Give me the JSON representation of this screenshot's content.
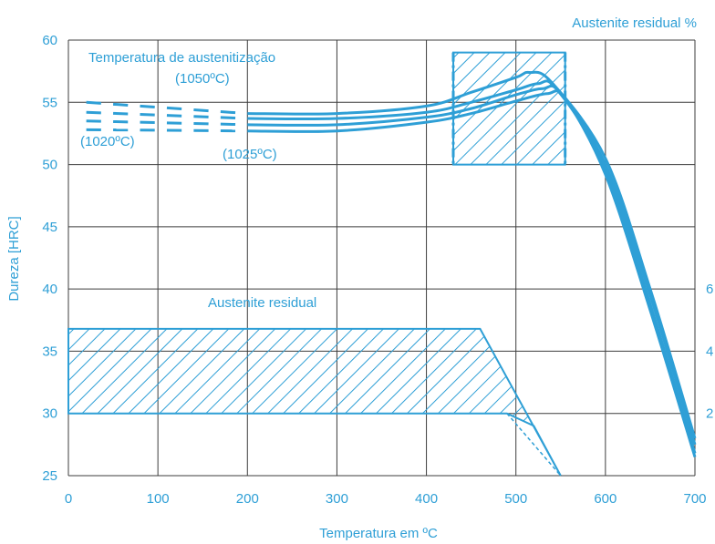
{
  "chart_data": {
    "type": "line",
    "title": "",
    "xlabel": "Temperatura em ºC",
    "ylabel": "Dureza [HRC]",
    "y2label": "Austenite residual %",
    "xlim": [
      0,
      700
    ],
    "ylim": [
      25,
      60
    ],
    "x_ticks": [
      "0",
      "100",
      "200",
      "300",
      "400",
      "500",
      "600",
      "700"
    ],
    "y_ticks": [
      "25",
      "30",
      "35",
      "40",
      "45",
      "50",
      "55",
      "60"
    ],
    "y2_ticks": [
      "2",
      "4",
      "6"
    ],
    "grid": true,
    "series": [
      {
        "x": [
          20,
          200,
          300,
          400,
          450,
          500,
          515,
          540,
          600,
          650,
          700
        ],
        "y": [
          55.0,
          54.1,
          54.1,
          54.7,
          55.8,
          57.0,
          57.4,
          56.6,
          50.5,
          40.0,
          28.0
        ]
      },
      {
        "x": [
          20,
          200,
          300,
          400,
          450,
          500,
          525,
          545,
          600,
          650,
          700
        ],
        "y": [
          54.2,
          53.7,
          53.7,
          54.2,
          55.0,
          56.0,
          56.5,
          56.1,
          50.0,
          39.5,
          27.5
        ]
      },
      {
        "x": [
          20,
          200,
          300,
          400,
          450,
          500,
          530,
          550,
          600,
          650,
          700
        ],
        "y": [
          53.5,
          53.2,
          53.2,
          53.8,
          54.5,
          55.6,
          56.1,
          55.7,
          49.6,
          38.8,
          26.8
        ]
      },
      {
        "x": [
          20,
          200,
          300,
          400,
          450,
          500,
          535,
          555,
          600,
          650,
          700
        ],
        "y": [
          52.8,
          52.7,
          52.7,
          53.4,
          54.1,
          55.1,
          55.7,
          55.3,
          49.2,
          38.3,
          26.5
        ]
      }
    ],
    "shaded_regions": [
      {
        "label": "Austenite residual",
        "polygon": [
          [
            0,
            30
          ],
          [
            0,
            36.8
          ],
          [
            460,
            36.8
          ],
          [
            550,
            25
          ],
          [
            520,
            29
          ],
          [
            490,
            30
          ]
        ]
      },
      {
        "label": "",
        "polygon": [
          [
            430,
            50
          ],
          [
            430,
            59
          ],
          [
            555,
            59
          ],
          [
            555,
            50
          ]
        ]
      }
    ],
    "annotations": {
      "legend_title": "Temperatura de austenitização",
      "label_1050": "(1050ºC)",
      "label_1020": "(1020ºC)",
      "label_1025": "(1025ºC)",
      "region_label": "Austenite residual"
    }
  },
  "colors": {
    "line": "#2e9fd6",
    "grid": "#3d3d3d",
    "text": "#2e9fd6"
  }
}
